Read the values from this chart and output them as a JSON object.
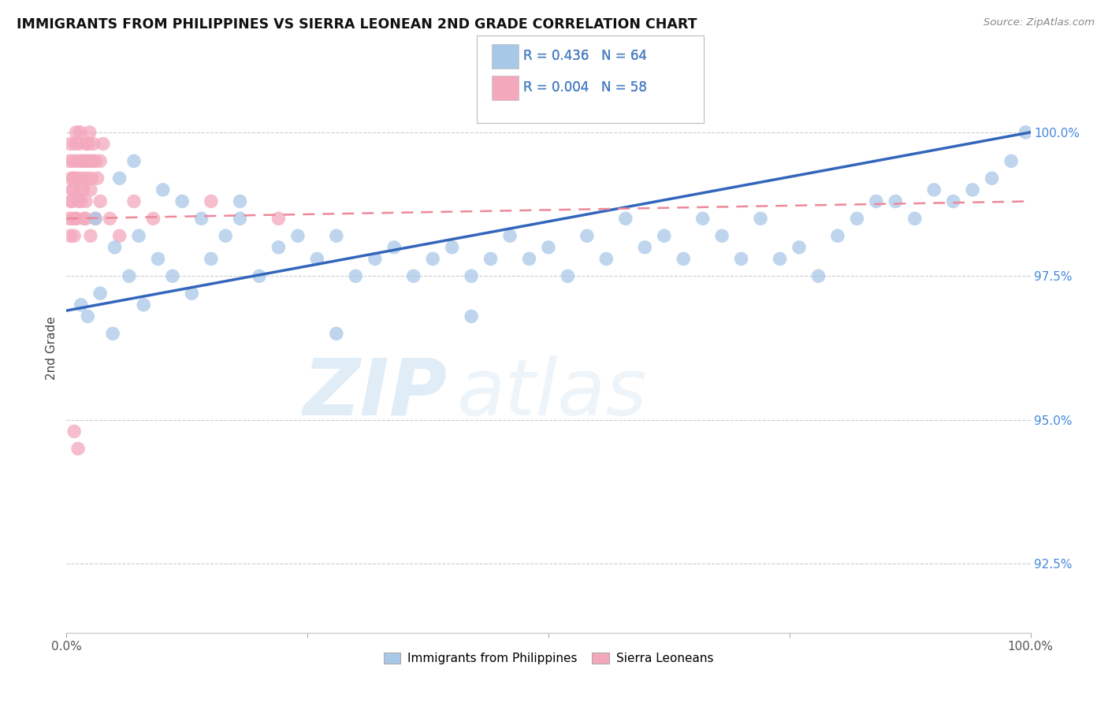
{
  "title": "IMMIGRANTS FROM PHILIPPINES VS SIERRA LEONEAN 2ND GRADE CORRELATION CHART",
  "source": "Source: ZipAtlas.com",
  "ylabel": "2nd Grade",
  "ytick_values": [
    92.5,
    95.0,
    97.5,
    100.0
  ],
  "xmin": 0.0,
  "xmax": 100.0,
  "ymin": 91.3,
  "ymax": 101.2,
  "legend_r1": "R = 0.436",
  "legend_n1": "N = 64",
  "legend_r2": "R = 0.004",
  "legend_n2": "N = 58",
  "legend_label1": "Immigrants from Philippines",
  "legend_label2": "Sierra Leoneans",
  "blue_color": "#A8C8E8",
  "pink_color": "#F4A8BC",
  "blue_line_color": "#3366BB",
  "pink_line_color": "#EE8899",
  "blue_scatter_x": [
    1.5,
    2.2,
    3.5,
    4.8,
    6.5,
    8.0,
    9.5,
    11.0,
    13.0,
    15.0,
    5.5,
    7.0,
    10.0,
    12.0,
    14.0,
    16.5,
    18.0,
    20.0,
    22.0,
    24.0,
    26.0,
    28.0,
    30.0,
    32.0,
    34.0,
    36.0,
    38.0,
    40.0,
    42.0,
    44.0,
    46.0,
    48.0,
    50.0,
    52.0,
    54.0,
    56.0,
    58.0,
    60.0,
    62.0,
    64.0,
    66.0,
    68.0,
    70.0,
    72.0,
    74.0,
    76.0,
    78.0,
    80.0,
    82.0,
    84.0,
    86.0,
    88.0,
    90.0,
    92.0,
    94.0,
    96.0,
    98.0,
    99.5,
    3.0,
    5.0,
    7.5,
    18.0,
    28.0,
    42.0
  ],
  "blue_scatter_y": [
    97.0,
    96.8,
    97.2,
    96.5,
    97.5,
    97.0,
    97.8,
    97.5,
    97.2,
    97.8,
    99.2,
    99.5,
    99.0,
    98.8,
    98.5,
    98.2,
    98.8,
    97.5,
    98.0,
    98.2,
    97.8,
    98.2,
    97.5,
    97.8,
    98.0,
    97.5,
    97.8,
    98.0,
    97.5,
    97.8,
    98.2,
    97.8,
    98.0,
    97.5,
    98.2,
    97.8,
    98.5,
    98.0,
    98.2,
    97.8,
    98.5,
    98.2,
    97.8,
    98.5,
    97.8,
    98.0,
    97.5,
    98.2,
    98.5,
    98.8,
    98.8,
    98.5,
    99.0,
    98.8,
    99.0,
    99.2,
    99.5,
    100.0,
    98.5,
    98.0,
    98.2,
    98.5,
    96.5,
    96.8
  ],
  "pink_scatter_x": [
    0.3,
    0.4,
    0.5,
    0.6,
    0.7,
    0.8,
    0.9,
    1.0,
    1.1,
    1.2,
    1.3,
    1.4,
    1.5,
    1.6,
    1.7,
    1.8,
    1.9,
    2.0,
    2.1,
    2.2,
    2.3,
    2.4,
    2.5,
    2.6,
    2.7,
    2.8,
    3.0,
    3.2,
    3.5,
    3.8,
    0.5,
    0.7,
    1.0,
    1.2,
    1.5,
    1.8,
    2.0,
    2.5,
    3.0,
    3.5,
    0.4,
    0.6,
    0.8,
    1.0,
    1.5,
    2.0,
    2.5,
    0.3,
    0.5,
    0.7,
    4.5,
    5.5,
    7.0,
    9.0,
    15.0,
    22.0,
    0.8,
    1.2
  ],
  "pink_scatter_y": [
    99.5,
    99.8,
    99.2,
    99.0,
    99.5,
    99.2,
    99.8,
    100.0,
    99.5,
    99.2,
    99.8,
    100.0,
    99.5,
    99.2,
    99.5,
    99.0,
    99.5,
    99.8,
    99.2,
    99.5,
    99.8,
    100.0,
    99.5,
    99.2,
    99.5,
    99.8,
    99.5,
    99.2,
    99.5,
    99.8,
    98.8,
    99.0,
    98.5,
    98.8,
    99.0,
    98.5,
    98.8,
    99.0,
    98.5,
    98.8,
    98.2,
    98.5,
    98.2,
    98.5,
    98.8,
    98.5,
    98.2,
    98.5,
    98.8,
    99.2,
    98.5,
    98.2,
    98.8,
    98.5,
    98.8,
    98.5,
    94.8,
    94.5
  ],
  "pink_line_start_x": 0.0,
  "pink_line_start_y": 98.5,
  "pink_line_end_x": 100.0,
  "pink_line_end_y": 98.8,
  "blue_line_start_x": 0.0,
  "blue_line_start_y": 96.9,
  "blue_line_end_x": 100.0,
  "blue_line_end_y": 100.0,
  "watermark_zip": "ZIP",
  "watermark_atlas": "atlas",
  "grid_color": "#CCCCCC",
  "background_color": "#FFFFFF"
}
